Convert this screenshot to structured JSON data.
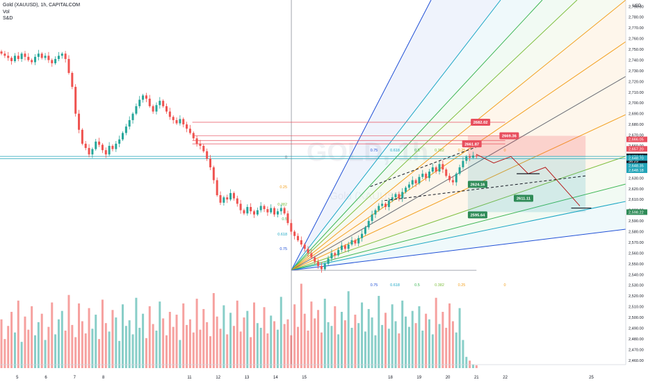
{
  "chart_data": {
    "type": "candlestick",
    "title": "Gold (XAUUSD), 1h, CAPITALCOM",
    "indicators": [
      "Vol",
      "S&D"
    ],
    "currency_label": "USD",
    "watermark": {
      "symbol": "GOLD, 1h",
      "subtitle": "Gold (XAUUSD)"
    },
    "y_ticks": [
      2460,
      2470,
      2480,
      2490,
      2500,
      2510,
      2520,
      2530,
      2540,
      2550,
      2560,
      2570,
      2580,
      2590,
      2600,
      2610,
      2620,
      2630,
      2640,
      2650,
      2660,
      2670,
      2680,
      2690,
      2700,
      2710,
      2720,
      2730,
      2740,
      2750,
      2760,
      2770,
      2780,
      2790
    ],
    "ylim": [
      2456,
      2796
    ],
    "x_tick_labels": [
      "5",
      "6",
      "7",
      "8",
      "11",
      "12",
      "13",
      "14",
      "15",
      "18",
      "19",
      "20",
      "21",
      "22",
      "25"
    ],
    "x_tick_positions": [
      5,
      6,
      7,
      8,
      11,
      12,
      13,
      14,
      15,
      18,
      19,
      20,
      21,
      22,
      25
    ],
    "x_range": [
      4.4,
      26.2
    ],
    "price_tags": [
      {
        "label": "2,666.05",
        "value": 2666.05,
        "color": "#e84f5e"
      },
      {
        "label": "2,657.20",
        "value": 2657.2,
        "color": "#e84f5e"
      },
      {
        "label": "2,650.20",
        "value": 2650.2,
        "color": "#131722"
      },
      {
        "label": "36:29",
        "value": 2645.6,
        "color": "#131722"
      },
      {
        "label": "2,648.70",
        "value": 2648.7,
        "color": "#22a4b8"
      },
      {
        "label": "2,648.35",
        "value": 2641.4,
        "color": "#22a4b8"
      },
      {
        "label": "2,648.18",
        "value": 2637.3,
        "color": "#22a4b8"
      },
      {
        "label": "2,598.22",
        "value": 2598.22,
        "color": "#2e8b57"
      }
    ],
    "level_labels": [
      {
        "label": "2682.02",
        "x": 20.8,
        "value": 2682.02,
        "color": "#e84f5e"
      },
      {
        "label": "2669.36",
        "x": 21.8,
        "value": 2669.36,
        "color": "#e84f5e"
      },
      {
        "label": "2661.87",
        "x": 20.5,
        "value": 2661.87,
        "color": "#e84f5e"
      },
      {
        "label": "2624.16",
        "x": 20.7,
        "value": 2624.16,
        "color": "#2e8b57"
      },
      {
        "label": "2611.11",
        "x": 22.3,
        "value": 2611.11,
        "color": "#2e8b57"
      },
      {
        "label": "2595.64",
        "x": 20.7,
        "value": 2595.64,
        "color": "#2e8b57"
      }
    ],
    "resistance_lines": [
      2682.02,
      2669.36,
      2665.0,
      2661.87
    ],
    "support_lines": [
      2650.2,
      2648.0
    ],
    "fib_fan": {
      "origin": {
        "x": 14.55,
        "y": 2544
      },
      "ratios_top": [
        "0.75",
        "0.618",
        "0.5",
        "0.382",
        "0.25",
        "0"
      ],
      "ratios_side": [
        "0",
        "0.25",
        "0.382",
        "0.5",
        "0.618",
        "0.75"
      ],
      "ratios_bottom": [
        "0.75",
        "0.618",
        "0.5",
        "0.382",
        "0.25",
        "0"
      ]
    },
    "ohlc_hourly_closes": [
      2746,
      2744,
      2742,
      2739,
      2744,
      2741,
      2746,
      2743,
      2740,
      2738,
      2743,
      2746,
      2742,
      2744,
      2740,
      2737,
      2741,
      2744,
      2746,
      2741,
      2728,
      2715,
      2690,
      2675,
      2662,
      2658,
      2652,
      2657,
      2664,
      2661,
      2656,
      2652,
      2660,
      2657,
      2662,
      2666,
      2672,
      2678,
      2684,
      2690,
      2697,
      2703,
      2707,
      2704,
      2697,
      2692,
      2698,
      2702,
      2697,
      2692,
      2687,
      2684,
      2681,
      2685,
      2680,
      2676,
      2672,
      2667,
      2662,
      2660,
      2655,
      2648,
      2640,
      2628,
      2614,
      2607,
      2612,
      2610,
      2616,
      2611,
      2606,
      2600,
      2597,
      2603,
      2599,
      2596,
      2600,
      2604,
      2601,
      2598,
      2602,
      2596,
      2599,
      2602,
      2597,
      2588,
      2580,
      2576,
      2572,
      2568,
      2564,
      2560,
      2556,
      2552,
      2548,
      2545,
      2550,
      2555,
      2560,
      2558,
      2563,
      2567,
      2564,
      2568,
      2572,
      2569,
      2574,
      2578,
      2584,
      2590,
      2596,
      2600,
      2604,
      2606,
      2603,
      2609,
      2612,
      2615,
      2611,
      2617,
      2621,
      2624,
      2628,
      2625,
      2631,
      2634,
      2630,
      2636,
      2640,
      2636,
      2643,
      2638,
      2632,
      2628,
      2626,
      2634,
      2640,
      2646,
      2650,
      2649,
      2651,
      2650
    ],
    "volumes": [
      0.52,
      0.31,
      0.45,
      0.6,
      0.38,
      0.72,
      0.28,
      0.55,
      0.41,
      0.66,
      0.35,
      0.49,
      0.58,
      0.3,
      0.44,
      0.7,
      0.36,
      0.52,
      0.61,
      0.4,
      0.78,
      0.46,
      0.33,
      0.69,
      0.5,
      0.37,
      0.64,
      0.42,
      0.57,
      0.31,
      0.73,
      0.48,
      0.39,
      0.62,
      0.54,
      0.29,
      0.68,
      0.45,
      0.51,
      0.36,
      0.75,
      0.43,
      0.58,
      0.32,
      0.66,
      0.47,
      0.4,
      0.71,
      0.53,
      0.35,
      0.6,
      0.44,
      0.57,
      0.3,
      0.69,
      0.46,
      0.52,
      0.38,
      0.74,
      0.41,
      0.63,
      0.49,
      0.34,
      0.8,
      0.55,
      0.42,
      0.67,
      0.36,
      0.59,
      0.45,
      0.72,
      0.39,
      0.54,
      0.61,
      0.33,
      0.7,
      0.48,
      0.43,
      0.65,
      0.37,
      0.56,
      0.5,
      0.41,
      0.76,
      0.47,
      0.52,
      0.35,
      0.68,
      0.44,
      0.9,
      0.58,
      0.4,
      0.71,
      0.53,
      0.62,
      0.38,
      0.74,
      0.49,
      0.45,
      0.66,
      0.36,
      0.6,
      0.51,
      0.82,
      0.43,
      0.57,
      0.48,
      0.7,
      0.39,
      0.63,
      0.54,
      0.35,
      0.77,
      0.46,
      0.59,
      0.42,
      0.68,
      0.5,
      0.37,
      0.72,
      0.55,
      0.44,
      0.61,
      0.48,
      0.66,
      0.4,
      0.58,
      0.52,
      0.36,
      0.75,
      0.47,
      0.6,
      0.43,
      0.69,
      0.5,
      0.38,
      0.64,
      0.3,
      0.12,
      0.08,
      0.04,
      0.03
    ]
  }
}
